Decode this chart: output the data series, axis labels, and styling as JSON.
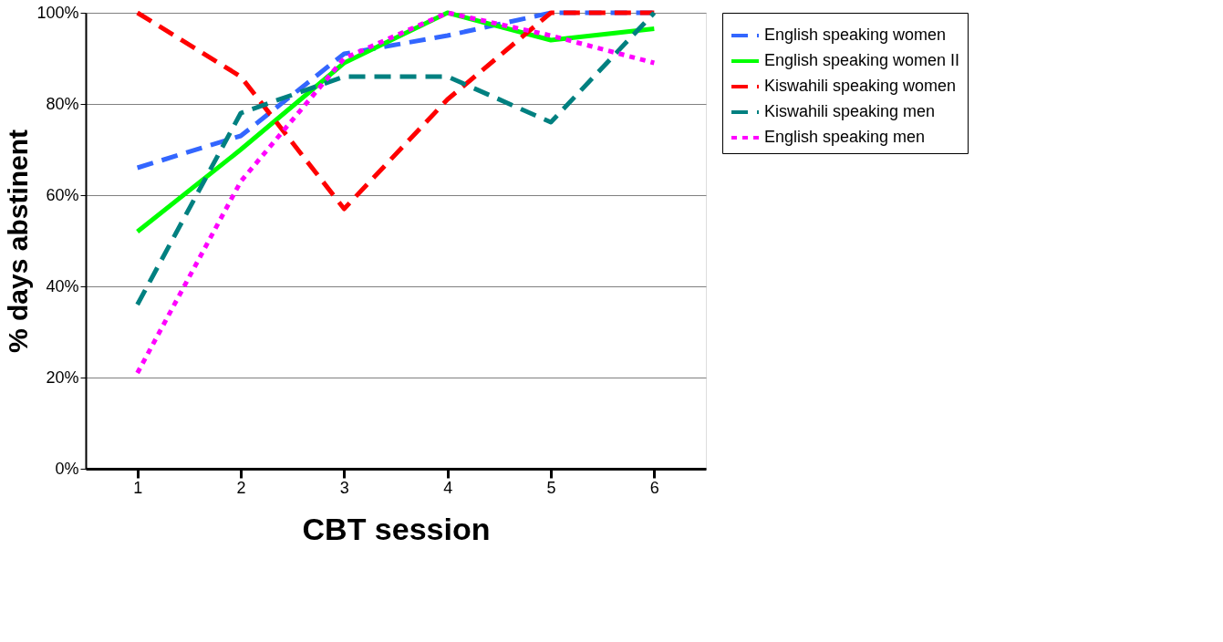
{
  "chart_data": {
    "type": "line",
    "xlabel": "CBT session",
    "ylabel": "% days abstinent",
    "categories": [
      "1",
      "2",
      "3",
      "4",
      "5",
      "6"
    ],
    "series": [
      {
        "name": "English speaking women",
        "color": "#3366ff",
        "line_style": "dashed",
        "values": [
          66,
          73,
          91,
          95,
          100,
          100
        ]
      },
      {
        "name": "English speaking women II",
        "color": "#00ff00",
        "line_style": "solid",
        "values": [
          52,
          70,
          89,
          100,
          94,
          96.5
        ]
      },
      {
        "name": "Kiswahili speaking women",
        "color": "#ff0000",
        "line_style": "dashed",
        "values": [
          100,
          86,
          57,
          81,
          100,
          100
        ]
      },
      {
        "name": "Kiswahili speaking men",
        "color": "#008080",
        "line_style": "dashed",
        "values": [
          36,
          78,
          86,
          86,
          76,
          100
        ]
      },
      {
        "name": "English speaking men",
        "color": "#ff00ff",
        "line_style": "dotted",
        "values": [
          21,
          63,
          90,
          100,
          95,
          89
        ]
      }
    ],
    "ylim": [
      0,
      100
    ],
    "yticks": [
      {
        "value": 0,
        "label": "0%"
      },
      {
        "value": 20,
        "label": "20%"
      },
      {
        "value": 40,
        "label": "40%"
      },
      {
        "value": 60,
        "label": "60%"
      },
      {
        "value": 80,
        "label": "80%"
      },
      {
        "value": 100,
        "label": "100%"
      }
    ],
    "grid": "y",
    "legend": "right",
    "marker": "none"
  }
}
